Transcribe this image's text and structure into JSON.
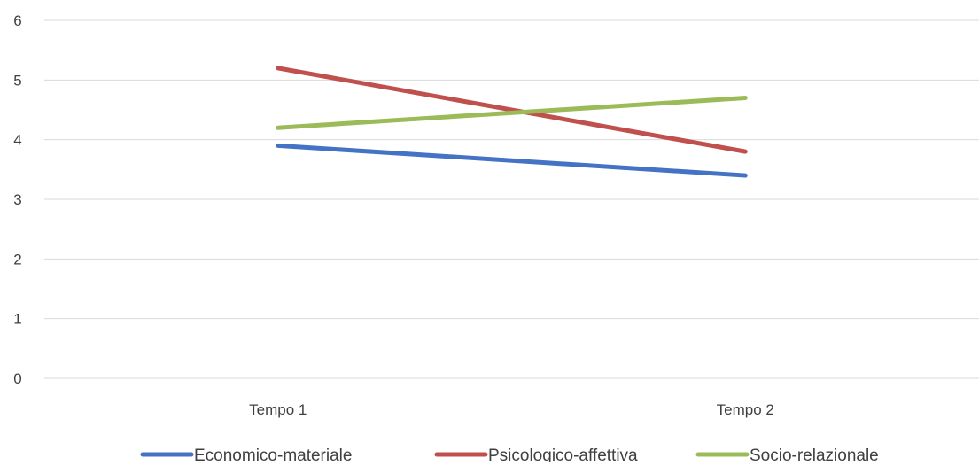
{
  "chart_data": {
    "type": "line",
    "title": "",
    "xlabel": "",
    "ylabel": "",
    "categories": [
      "Tempo 1",
      "Tempo 2"
    ],
    "ylim": [
      0,
      6
    ],
    "yticks": [
      0,
      1,
      2,
      3,
      4,
      5,
      6
    ],
    "grid": "horizontal",
    "legend_position": "bottom",
    "series": [
      {
        "name": "Economico-materiale",
        "values": [
          3.9,
          3.4
        ],
        "color": "#4472C4"
      },
      {
        "name": "Psicologico-affettiva",
        "values": [
          5.2,
          3.8
        ],
        "color": "#C0504D"
      },
      {
        "name": "Socio-relazionale",
        "values": [
          4.2,
          4.7
        ],
        "color": "#9BBB59"
      }
    ]
  }
}
